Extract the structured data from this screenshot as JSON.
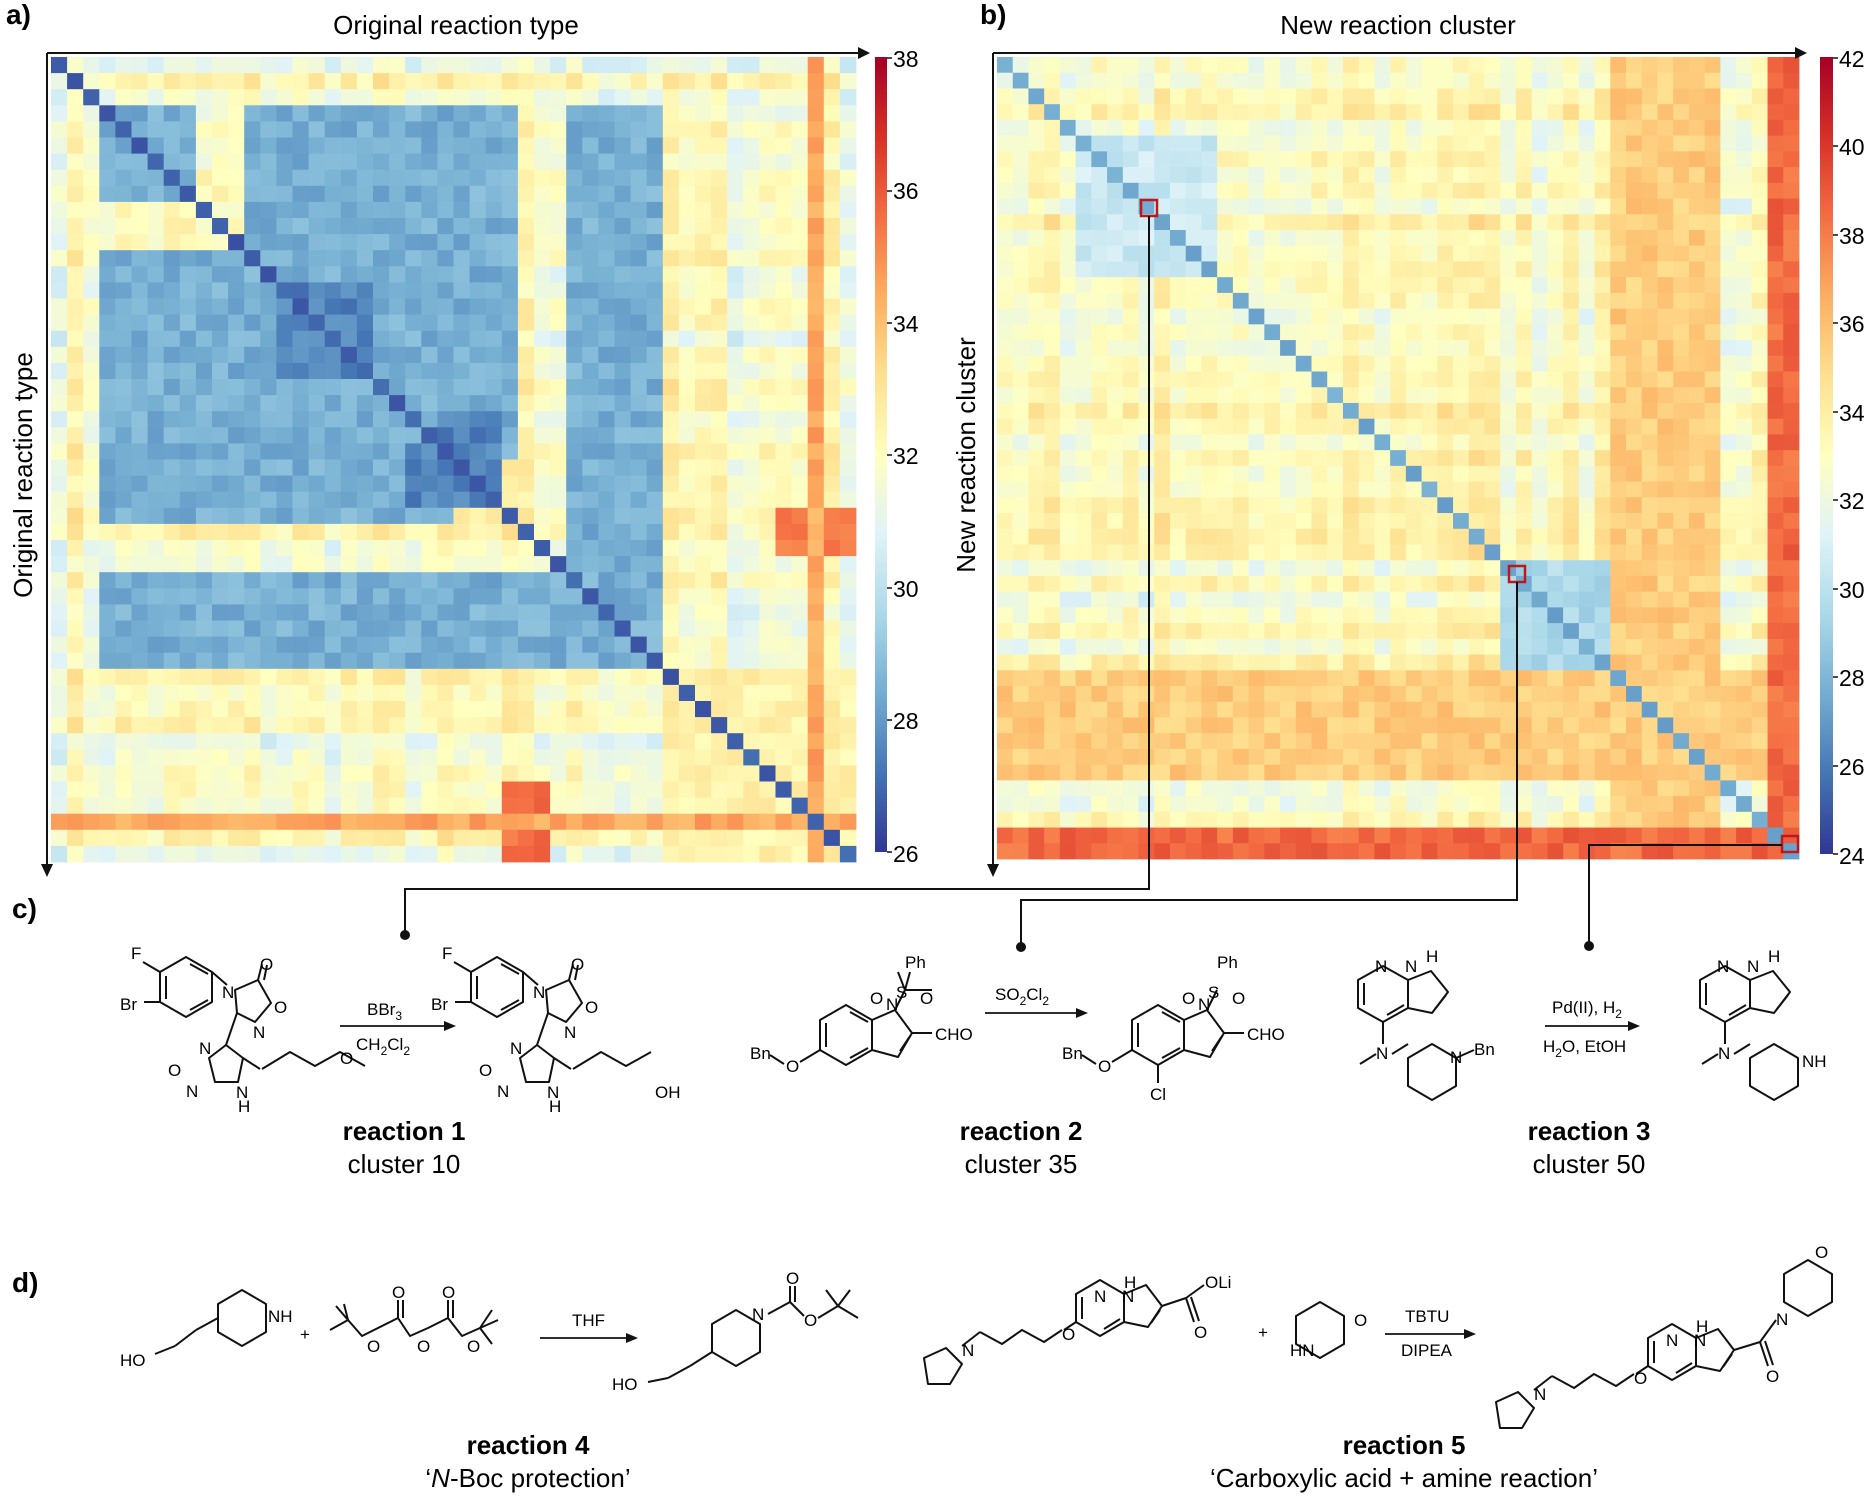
{
  "panels": {
    "a": {
      "letter": "a)",
      "title": "Original reaction type",
      "ylabel": "Original reaction type",
      "colorbar_ticks": [
        "38",
        "36",
        "34",
        "32",
        "30",
        "28",
        "26"
      ]
    },
    "b": {
      "letter": "b)",
      "title": "New reaction cluster",
      "ylabel": "New reaction cluster",
      "colorbar_ticks": [
        "42",
        "40",
        "38",
        "36",
        "34",
        "32",
        "30",
        "28",
        "26",
        "24"
      ]
    },
    "c": {
      "letter": "c)",
      "reactions": [
        {
          "title": "reaction 1",
          "subtitle": "cluster 10",
          "reagent_top": "BBr3",
          "reagent_bottom": "CH2Cl2"
        },
        {
          "title": "reaction 2",
          "subtitle": "cluster 35",
          "reagent_top": "SO2Cl2"
        },
        {
          "title": "reaction 3",
          "subtitle": "cluster 50",
          "reagent_top": "Pd(II), H2",
          "reagent_bottom": "H2O, EtOH"
        }
      ]
    },
    "d": {
      "letter": "d)",
      "reactions": [
        {
          "title": "reaction 4",
          "subtitle_prefix": "‘",
          "subtitle_italic": "N",
          "subtitle_rest": "-Boc protection’",
          "reagent_top": "THF"
        },
        {
          "title": "reaction 5",
          "subtitle": "‘Carboxylic acid + amine reaction’",
          "reagent_top": "TBTU",
          "reagent_bottom": "DIPEA"
        }
      ]
    }
  },
  "chem_labels": {
    "F": "F",
    "Br": "Br",
    "N": "N",
    "O": "O",
    "NH": "NH",
    "HN": "HN",
    "OH": "OH",
    "HO": "HO",
    "Ph": "Ph",
    "S": "S",
    "CHO": "CHO",
    "Bn": "Bn",
    "Cl": "Cl",
    "H": "H",
    "OLi": "OLi",
    "plus": "+"
  },
  "colors": {
    "colormap": [
      "#313695",
      "#4575b4",
      "#74add1",
      "#abd9e9",
      "#e0f3f8",
      "#ffffbf",
      "#fee090",
      "#fdae61",
      "#f46d43",
      "#d73027",
      "#a50026"
    ],
    "highlight_box": "#c0171b"
  },
  "chart_data": [
    {
      "type": "heatmap",
      "title": "Original reaction type",
      "xlabel": "Original reaction type",
      "ylabel": "Original reaction type",
      "colorbar_range": [
        26,
        38
      ],
      "colorbar_ticks": [
        26,
        28,
        30,
        32,
        34,
        36,
        38
      ],
      "n_rows": 50,
      "n_cols": 50,
      "diagonal_value": 26.5,
      "block_structure": [
        {
          "rows": [
            3,
            9
          ],
          "cols": [
            3,
            9
          ],
          "level": 28.5
        },
        {
          "rows": [
            12,
            29
          ],
          "cols": [
            3,
            25
          ],
          "level": 28.5
        },
        {
          "rows": [
            15,
            20
          ],
          "cols": [
            14,
            19
          ],
          "level": 27.5
        },
        {
          "rows": [
            24,
            28
          ],
          "cols": [
            22,
            27
          ],
          "level": 27.5
        },
        {
          "rows": [
            32,
            38
          ],
          "cols": [
            3,
            38
          ],
          "level": 28.5
        },
        {
          "rows": [
            42,
            50
          ],
          "cols": [
            38,
            50
          ],
          "level": 32.5
        },
        {
          "rows": [
            28,
            31
          ],
          "cols": [
            45,
            50
          ],
          "level": 35.5
        },
        {
          "rows": [
            46,
            48
          ],
          "cols": [
            28,
            31
          ],
          "level": 35.5
        },
        {
          "rows": [
            47,
            48
          ],
          "cols": [
            0,
            50
          ],
          "level": 34.5
        }
      ]
    },
    {
      "type": "heatmap",
      "title": "New reaction cluster",
      "xlabel": "New reaction cluster",
      "ylabel": "New reaction cluster",
      "colorbar_range": [
        24,
        42
      ],
      "colorbar_ticks": [
        24,
        26,
        28,
        30,
        32,
        34,
        36,
        38,
        40,
        42
      ],
      "n_rows": 51,
      "n_cols": 51,
      "diagonal_value": 27,
      "block_structure": [
        {
          "rows": [
            5,
            14
          ],
          "cols": [
            5,
            14
          ],
          "level": 30.5
        },
        {
          "rows": [
            32,
            42
          ],
          "cols": [
            32,
            42
          ],
          "level": 29.5
        },
        {
          "rows": [
            39,
            46
          ],
          "cols": [
            0,
            51
          ],
          "level": 35.5
        },
        {
          "rows": [
            49,
            51
          ],
          "cols": [
            0,
            51
          ],
          "level": 38.5
        }
      ],
      "highlighted_cells": [
        {
          "cluster": 10,
          "reaction": "reaction 1"
        },
        {
          "cluster": 35,
          "reaction": "reaction 2"
        },
        {
          "cluster": 50,
          "reaction": "reaction 3"
        }
      ]
    }
  ]
}
